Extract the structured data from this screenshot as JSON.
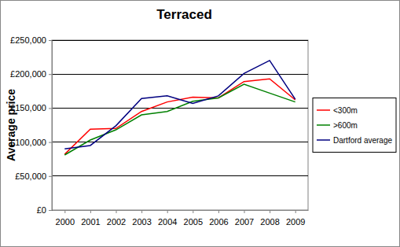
{
  "chart_data": {
    "type": "line",
    "title": "Terraced",
    "y_label": "Average price",
    "categories": [
      "2000",
      "2001",
      "2002",
      "2003",
      "2004",
      "2005",
      "2006",
      "2007",
      "2008",
      "2009"
    ],
    "series": [
      {
        "name": "<300m",
        "color": "#ff0000",
        "values": [
          82000,
          119000,
          120000,
          145000,
          159000,
          166000,
          165000,
          189000,
          193000,
          162000
        ]
      },
      {
        "name": ">600m",
        "color": "#008000",
        "values": [
          81000,
          103000,
          118000,
          140000,
          145000,
          160000,
          165000,
          185000,
          172000,
          159000
        ]
      },
      {
        "name": "Dartford average",
        "color": "#000080",
        "values": [
          90000,
          95000,
          124000,
          164000,
          168000,
          157000,
          168000,
          201000,
          220000,
          163000
        ]
      }
    ],
    "ylim": [
      0,
      250000
    ],
    "yticks": [
      {
        "value": 0,
        "label": "£0"
      },
      {
        "value": 50000,
        "label": "£50,000"
      },
      {
        "value": 100000,
        "label": "£100,000"
      },
      {
        "value": 150000,
        "label": "£150,000"
      },
      {
        "value": 200000,
        "label": "£200,000"
      },
      {
        "value": 250000,
        "label": "£250,000"
      }
    ],
    "grid": true,
    "legend": "right"
  }
}
